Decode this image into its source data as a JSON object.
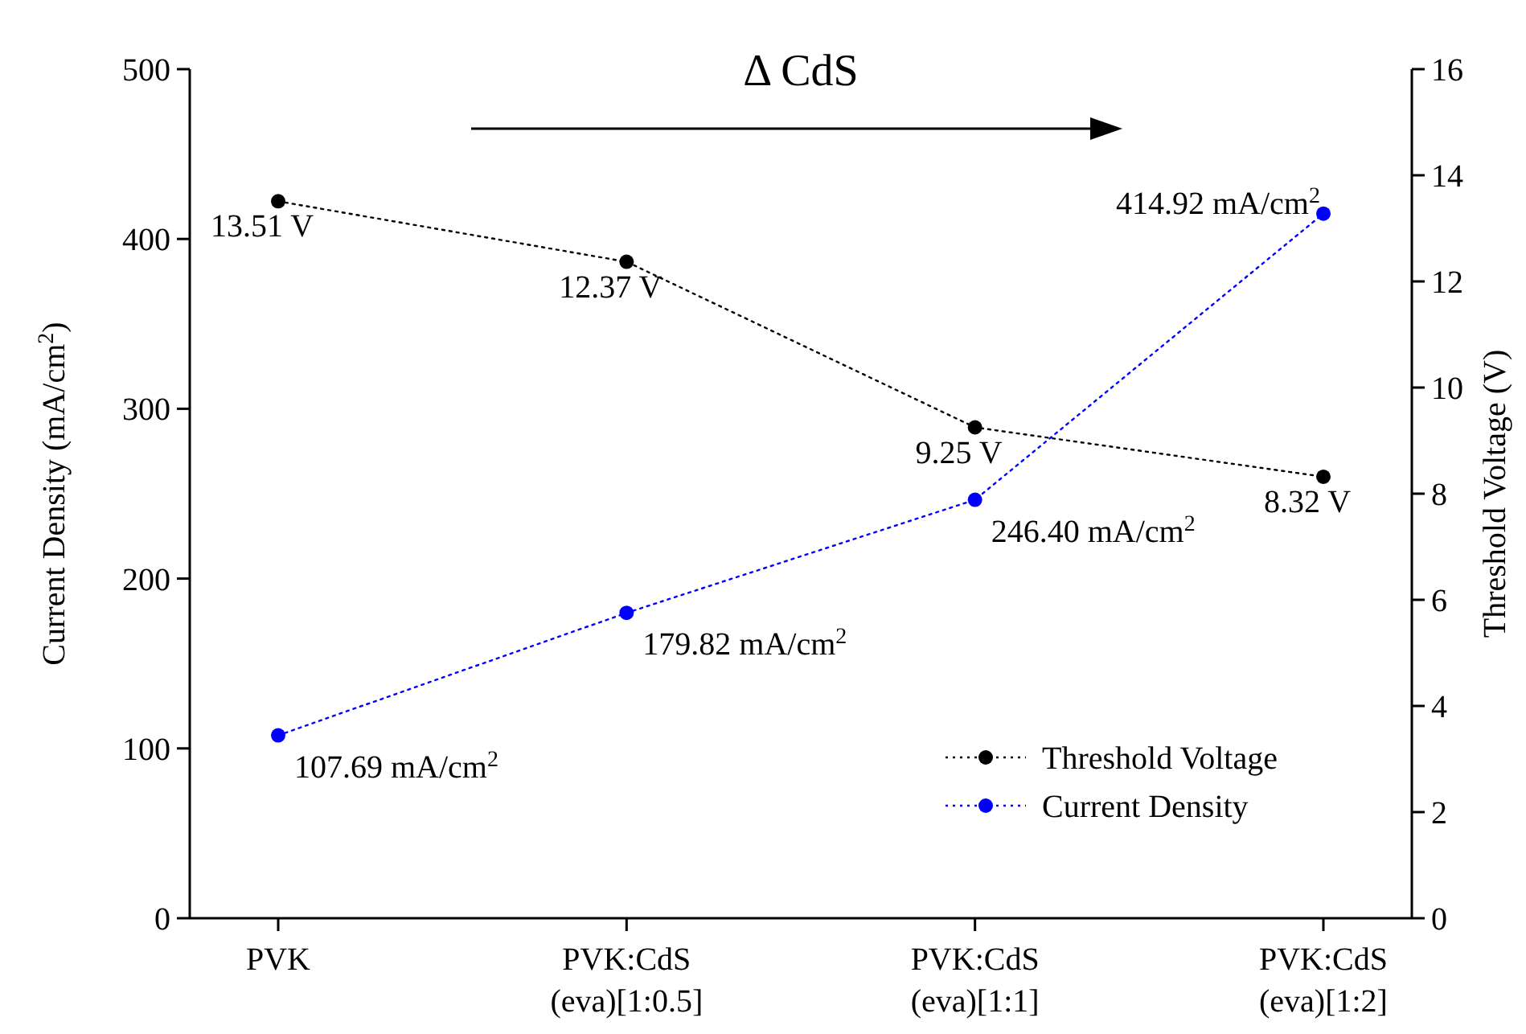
{
  "chart_data": {
    "type": "line",
    "categories": [
      "PVK",
      "PVK:CdS\n(eva)[1:0.5]",
      "PVK:CdS\n(eva)[1:1]",
      "PVK:CdS\n(eva)[1:2]"
    ],
    "ylabel": "Current Density (mA/cm$^{2}$)",
    "y2label": "Threshold Voltage (V)",
    "ylim": [
      0,
      500
    ],
    "yticks": [
      0,
      100,
      200,
      300,
      400,
      500
    ],
    "y2lim": [
      0,
      16
    ],
    "y2ticks": [
      0,
      2,
      4,
      6,
      8,
      10,
      12,
      14,
      16
    ],
    "series": [
      {
        "name": "Threshold Voltage",
        "color": "#000000",
        "axis": "y2",
        "values": [
          13.51,
          12.37,
          9.25,
          8.32
        ],
        "value_labels": [
          "13.51 V",
          "12.37 V",
          "9.25 V",
          "8.32 V"
        ]
      },
      {
        "name": "Current Density",
        "color": "#0000ff",
        "values": [
          107.69,
          179.82,
          246.4,
          414.92
        ],
        "value_labels": [
          "107.69 mA/cm$^{2}$",
          "179.82 mA/cm$^{2}$",
          "246.40 mA/cm$^{2}$",
          "414.92 mA/cm$^{2}$"
        ]
      }
    ],
    "annotations": [
      "Δ CdS"
    ],
    "marker": "circle",
    "line_style": "dotted",
    "legend": "bottom right",
    "grid": false
  }
}
